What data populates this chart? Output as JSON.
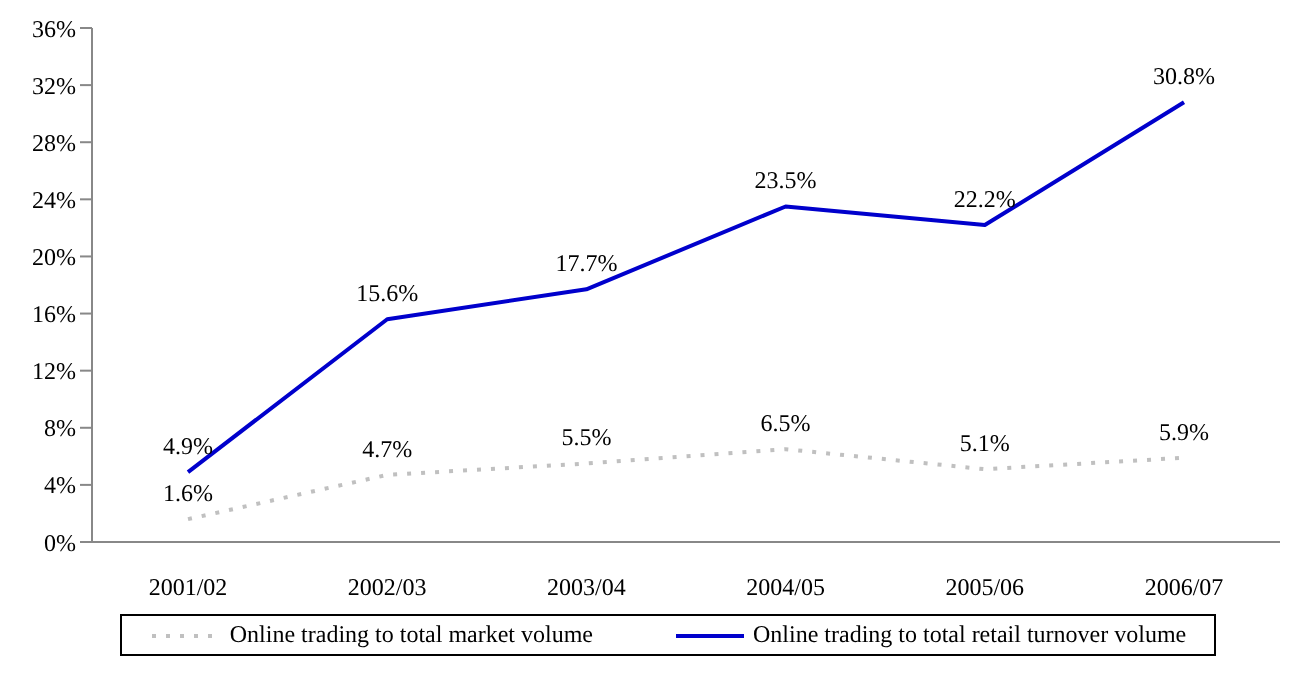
{
  "chart_data": {
    "type": "line",
    "categories": [
      "2001/02",
      "2002/03",
      "2003/04",
      "2004/05",
      "2005/06",
      "2006/07"
    ],
    "series": [
      {
        "name": "Online trading to total market volume",
        "color": "#c0c0c0",
        "line_style": "dotted",
        "values": [
          1.6,
          4.7,
          5.5,
          6.5,
          5.1,
          5.9
        ],
        "value_labels": [
          "1.6%",
          "4.7%",
          "5.5%",
          "6.5%",
          "5.1%",
          "5.9%"
        ]
      },
      {
        "name": "Online trading to total retail turnover volume",
        "color": "#0000cc",
        "line_style": "solid",
        "values": [
          4.9,
          15.6,
          17.7,
          23.5,
          22.2,
          30.8
        ],
        "value_labels": [
          "4.9%",
          "15.6%",
          "17.7%",
          "23.5%",
          "22.2%",
          "30.8%"
        ]
      }
    ],
    "ylim": [
      0,
      36
    ],
    "yticks": [
      {
        "value": 0,
        "label": "0%"
      },
      {
        "value": 4,
        "label": "4%"
      },
      {
        "value": 8,
        "label": "8%"
      },
      {
        "value": 12,
        "label": "12%"
      },
      {
        "value": 16,
        "label": "16%"
      },
      {
        "value": 20,
        "label": "20%"
      },
      {
        "value": 24,
        "label": "24%"
      },
      {
        "value": 28,
        "label": "28%"
      },
      {
        "value": 32,
        "label": "32%"
      },
      {
        "value": 36,
        "label": "36%"
      }
    ],
    "grid": false,
    "legend": "bottom",
    "marker": "none"
  }
}
